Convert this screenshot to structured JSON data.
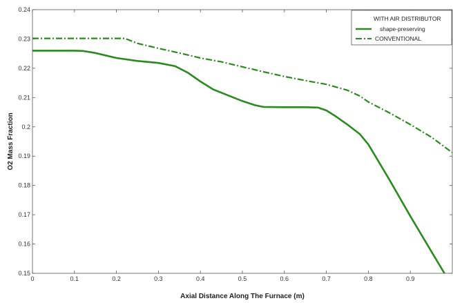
{
  "chart_data": {
    "type": "line",
    "xlabel": "Axial Distance Along The Furnace (m)",
    "ylabel": "O2 Mass Fraction",
    "xlim": [
      0,
      1
    ],
    "ylim": [
      0.15,
      0.24
    ],
    "xticks": [
      0,
      0.1,
      0.2,
      0.3,
      0.4,
      0.5,
      0.6,
      0.7,
      0.8,
      0.9
    ],
    "xtick_labels": [
      "0",
      "0.1",
      "0.2",
      "0.3",
      "0.4",
      "0.5",
      "0.6",
      "0.7",
      "0.8",
      "0.9"
    ],
    "yticks": [
      0.15,
      0.16,
      0.17,
      0.18,
      0.19,
      0.2,
      0.21,
      0.22,
      0.23,
      0.24
    ],
    "ytick_labels": [
      "0.15",
      "0.16",
      "0.17",
      "0.18",
      "0.19",
      "0.2",
      "0.21",
      "0.22",
      "0.23",
      "0.24"
    ],
    "grid": false,
    "legend": {
      "title": "WITH AIR DISTRIBUTOR",
      "placement": "top-right"
    },
    "series": [
      {
        "name": "shape-preserving",
        "color": "#2a8a1e",
        "style": "solid",
        "x": [
          0,
          0.05,
          0.1,
          0.12,
          0.15,
          0.2,
          0.25,
          0.3,
          0.34,
          0.37,
          0.4,
          0.43,
          0.47,
          0.5,
          0.53,
          0.55,
          0.6,
          0.65,
          0.68,
          0.7,
          0.72,
          0.75,
          0.78,
          0.8,
          0.85,
          0.9,
          0.95,
          1.0
        ],
        "y": [
          0.226,
          0.226,
          0.226,
          0.2259,
          0.2252,
          0.2235,
          0.2225,
          0.2218,
          0.2207,
          0.2185,
          0.2155,
          0.2128,
          0.2105,
          0.2088,
          0.2074,
          0.2068,
          0.2067,
          0.2067,
          0.2066,
          0.2056,
          0.2038,
          0.2008,
          0.1975,
          0.194,
          0.182,
          0.1695,
          0.1575,
          0.1455
        ]
      },
      {
        "name": "CONVENTIONAL",
        "color": "#2a8a1e",
        "style": "dashdot",
        "x": [
          0,
          0.05,
          0.1,
          0.15,
          0.2,
          0.22,
          0.25,
          0.3,
          0.35,
          0.4,
          0.45,
          0.5,
          0.55,
          0.6,
          0.65,
          0.7,
          0.75,
          0.78,
          0.8,
          0.85,
          0.9,
          0.95,
          1.0
        ],
        "y": [
          0.2302,
          0.2302,
          0.2302,
          0.2302,
          0.2302,
          0.2302,
          0.2285,
          0.2268,
          0.2252,
          0.2235,
          0.2222,
          0.2205,
          0.2188,
          0.2172,
          0.2158,
          0.2145,
          0.2125,
          0.2105,
          0.2085,
          0.2048,
          0.2008,
          0.1965,
          0.1912
        ]
      }
    ]
  }
}
